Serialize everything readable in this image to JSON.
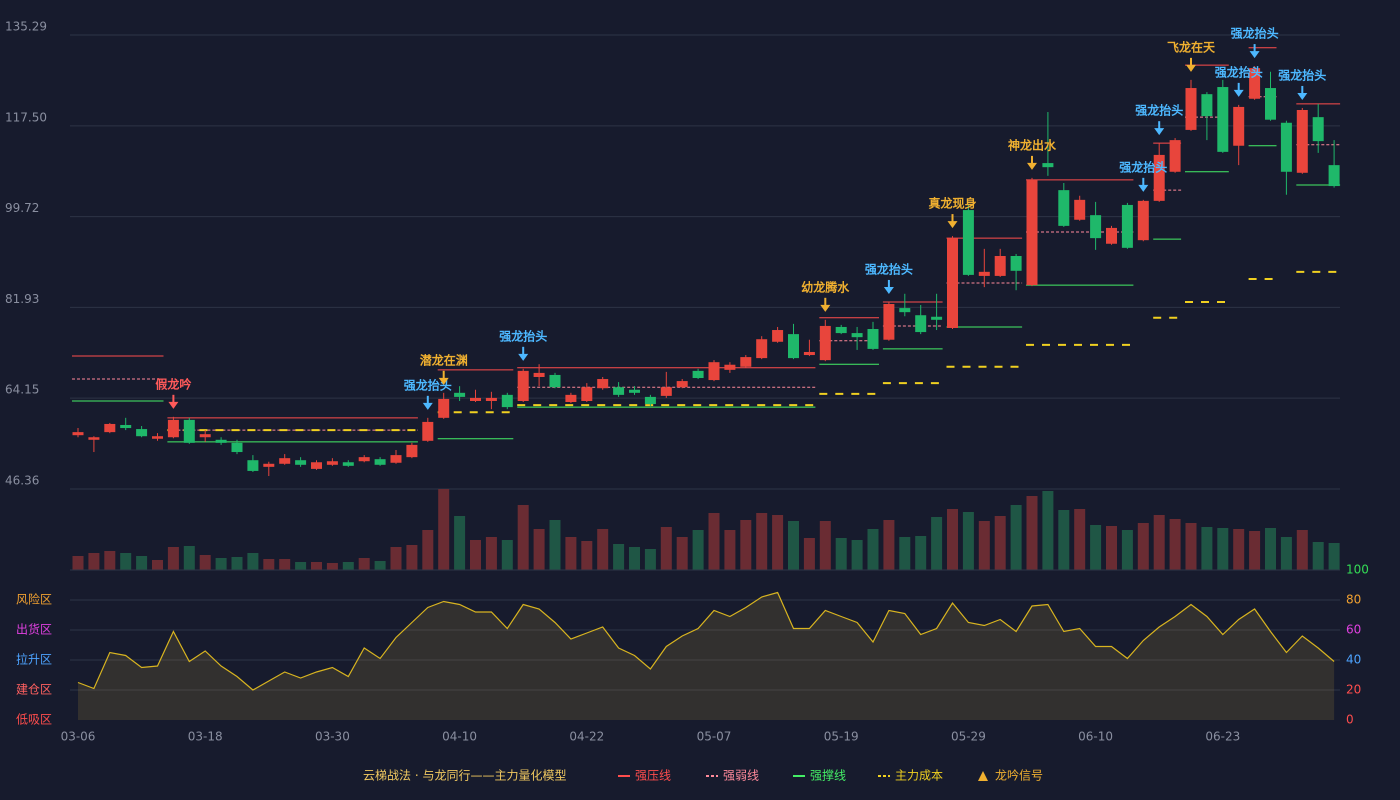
{
  "chart_data": {
    "type": "candlestick",
    "categories": [
      "03-06",
      null,
      null,
      null,
      null,
      null,
      null,
      null,
      "03-18",
      null,
      null,
      null,
      null,
      null,
      null,
      null,
      "03-30",
      null,
      null,
      null,
      null,
      null,
      null,
      null,
      "04-10",
      null,
      null,
      null,
      null,
      null,
      null,
      null,
      "04-22",
      null,
      null,
      null,
      null,
      null,
      null,
      null,
      "05-07",
      null,
      null,
      null,
      null,
      null,
      null,
      null,
      "05-19",
      null,
      null,
      null,
      null,
      null,
      null,
      null,
      "05-29",
      null,
      null,
      null,
      null,
      null,
      null,
      null,
      "06-10",
      null,
      null,
      null,
      null,
      null,
      null,
      null,
      "06-23",
      null,
      null,
      null,
      null,
      null,
      null,
      null
    ],
    "open": [
      56.9,
      56.0,
      57.5,
      58.9,
      58.1,
      56.2,
      56.5,
      59.9,
      56.5,
      56.0,
      55.4,
      52.0,
      50.7,
      51.3,
      52.0,
      50.3,
      51.1,
      51.6,
      51.8,
      52.2,
      51.5,
      52.6,
      55.8,
      60.3,
      65.2,
      63.6,
      63.6,
      64.8,
      63.6,
      68.3,
      68.7,
      63.4,
      63.6,
      66.1,
      66.3,
      65.8,
      64.4,
      64.6,
      66.3,
      69.5,
      67.7,
      69.7,
      70.3,
      72.0,
      75.2,
      76.7,
      72.6,
      71.6,
      78.1,
      76.9,
      77.7,
      75.6,
      81.8,
      80.4,
      80.1,
      77.9,
      101.0,
      88.1,
      88.1,
      92.0,
      86.3,
      110.2,
      104.9,
      99.1,
      100.0,
      94.4,
      102.0,
      95.1,
      102.8,
      108.5,
      116.7,
      123.7,
      125.1,
      113.6,
      122.8,
      124.9,
      118.1,
      108.3,
      119.2,
      109.8
    ],
    "close": [
      57.5,
      56.5,
      59.1,
      58.3,
      56.7,
      56.7,
      59.9,
      55.4,
      57.1,
      55.4,
      53.6,
      49.9,
      51.3,
      52.4,
      51.1,
      51.6,
      51.8,
      50.9,
      52.6,
      51.1,
      53.0,
      55.0,
      59.5,
      64.0,
      64.4,
      64.2,
      64.2,
      62.4,
      69.5,
      69.1,
      66.3,
      64.8,
      66.3,
      67.9,
      64.8,
      65.2,
      63.0,
      66.3,
      67.5,
      68.1,
      71.2,
      70.7,
      72.2,
      75.7,
      77.5,
      72.0,
      73.2,
      78.3,
      76.9,
      76.1,
      73.8,
      82.6,
      81.0,
      77.1,
      79.5,
      95.5,
      88.3,
      88.9,
      92.0,
      89.1,
      106.9,
      109.4,
      97.9,
      103.0,
      95.5,
      97.5,
      93.6,
      102.8,
      111.8,
      114.7,
      124.9,
      119.4,
      112.4,
      121.2,
      128.8,
      118.7,
      108.5,
      120.6,
      114.5,
      105.7
    ],
    "high": [
      58.3,
      56.7,
      59.3,
      60.3,
      58.7,
      57.3,
      60.5,
      60.3,
      57.9,
      56.5,
      56.0,
      53.0,
      51.7,
      53.2,
      52.6,
      52.0,
      52.4,
      52.0,
      53.0,
      52.6,
      54.0,
      55.4,
      60.3,
      65.2,
      66.5,
      65.8,
      65.4,
      65.2,
      69.9,
      70.8,
      69.1,
      65.2,
      67.1,
      68.3,
      67.3,
      66.5,
      64.8,
      69.3,
      67.9,
      69.9,
      71.6,
      71.2,
      72.6,
      76.3,
      78.1,
      78.7,
      75.6,
      79.5,
      78.5,
      78.1,
      79.1,
      83.0,
      84.6,
      82.4,
      84.6,
      95.9,
      102.0,
      93.4,
      93.4,
      92.4,
      107.3,
      120.2,
      106.3,
      103.8,
      102.6,
      97.9,
      102.4,
      103.0,
      114.1,
      115.1,
      126.5,
      124.1,
      126.5,
      121.6,
      129.2,
      128.1,
      118.5,
      121.0,
      121.8,
      114.7
    ],
    "low": [
      56.5,
      53.6,
      57.3,
      57.9,
      56.5,
      55.8,
      56.3,
      55.2,
      55.6,
      55.0,
      53.2,
      49.7,
      48.9,
      51.1,
      50.7,
      50.1,
      50.9,
      50.7,
      51.6,
      50.9,
      51.3,
      52.4,
      55.6,
      60.1,
      63.6,
      63.4,
      62.0,
      62.0,
      63.4,
      66.5,
      66.1,
      63.2,
      63.4,
      65.8,
      64.4,
      64.8,
      62.6,
      64.2,
      66.1,
      67.9,
      67.5,
      69.1,
      70.1,
      71.8,
      75.0,
      71.8,
      72.4,
      71.4,
      76.7,
      73.6,
      73.6,
      75.4,
      80.2,
      76.7,
      77.5,
      77.7,
      88.1,
      85.9,
      87.9,
      85.3,
      86.1,
      107.7,
      97.7,
      98.9,
      93.2,
      94.2,
      93.4,
      94.9,
      102.6,
      108.3,
      116.5,
      114.7,
      112.2,
      109.8,
      122.6,
      118.5,
      104.0,
      108.1,
      112.2,
      105.4
    ],
    "ylim": [
      46.36,
      135.29
    ],
    "yticks": [
      46.36,
      64.15,
      81.93,
      99.72,
      {
        "value": 117.5,
        "label": "117.50"
      },
      135.29
    ],
    "grid": true,
    "volume": [
      14,
      17,
      19,
      17,
      14,
      10,
      23,
      24,
      15,
      12,
      13,
      17,
      11,
      11,
      8,
      8,
      7,
      8,
      12,
      9,
      23,
      25,
      40,
      81,
      54,
      30,
      33,
      30,
      65,
      41,
      50,
      33,
      29,
      41,
      26,
      23,
      21,
      43,
      33,
      40,
      57,
      40,
      50,
      57,
      55,
      49,
      32,
      49,
      32,
      30,
      41,
      50,
      33,
      34,
      53,
      61,
      58,
      49,
      54,
      65,
      74,
      79,
      60,
      61,
      45,
      44,
      40,
      47,
      55,
      51,
      47,
      43,
      42,
      41,
      39,
      42,
      33,
      40,
      28,
      27
    ],
    "oscillator": {
      "values": [
        25,
        21,
        45,
        43,
        35,
        36,
        59,
        39,
        46,
        36,
        29,
        20,
        26,
        32,
        28,
        32,
        35,
        29,
        48,
        41,
        55,
        65,
        75,
        79,
        77,
        72,
        72,
        61,
        77,
        74,
        65,
        54,
        58,
        62,
        48,
        43,
        34,
        49,
        56,
        61,
        73,
        69,
        75,
        82,
        85,
        61,
        61,
        73,
        69,
        65,
        52,
        73,
        71,
        57,
        61,
        78,
        65,
        63,
        67,
        59,
        76,
        77,
        59,
        61,
        49,
        49,
        41,
        53,
        62,
        69,
        77,
        69,
        57,
        67,
        74,
        59,
        45,
        56,
        48,
        39
      ],
      "ylim": [
        0,
        100
      ],
      "yticks": [
        0,
        20,
        40,
        60,
        80,
        100
      ],
      "tick_colors": [
        "#ff4d4d",
        "#ff4d4d",
        "#4da3ff",
        "#e040e0",
        "#f0a030",
        "#33dd55"
      ],
      "zones": [
        {
          "value": 0,
          "label": "低吸区"
        },
        {
          "value": 20,
          "label": "建仓区"
        },
        {
          "value": 40,
          "label": "拉升区"
        },
        {
          "value": 60,
          "label": "出货区"
        },
        {
          "value": 80,
          "label": "风险区"
        }
      ],
      "zone_colors": [
        "#ff4d4d",
        "#ff6060",
        "#4da3ff",
        "#e040e0",
        "#f0a030"
      ]
    },
    "levels": [
      {
        "start": 0,
        "end": 5,
        "pressure": 72.4,
        "mid": 67.9,
        "support": 63.6,
        "cost": null
      },
      {
        "start": 6,
        "end": 21,
        "pressure": 60.3,
        "mid": 57.9,
        "support": 55.6,
        "cost": 57.9
      },
      {
        "start": 23,
        "end": 27,
        "pressure": 69.7,
        "mid": null,
        "support": 56.2,
        "cost": 61.4
      },
      {
        "start": 28,
        "end": 46,
        "pressure": 70.1,
        "mid": 66.3,
        "support": 62.4,
        "cost": 62.8
      },
      {
        "start": 47,
        "end": 50,
        "pressure": 79.9,
        "mid": 75.4,
        "support": 70.8,
        "cost": 65.0
      },
      {
        "start": 51,
        "end": 54,
        "pressure": 83.0,
        "mid": 78.3,
        "support": 73.8,
        "cost": 67.1
      },
      {
        "start": 55,
        "end": 59,
        "pressure": 95.5,
        "mid": 86.7,
        "support": 78.1,
        "cost": 70.3
      },
      {
        "start": 60,
        "end": 66,
        "pressure": 106.9,
        "mid": 96.7,
        "support": 86.3,
        "cost": 74.6
      },
      {
        "start": 68,
        "end": 69,
        "pressure": 114.1,
        "mid": 104.9,
        "support": 95.3,
        "cost": 79.9
      },
      {
        "start": 70,
        "end": 72,
        "pressure": 129.4,
        "mid": 119.2,
        "support": 108.5,
        "cost": 83.0
      },
      {
        "start": 74,
        "end": 75,
        "pressure": 132.8,
        "mid": 123.2,
        "support": 113.6,
        "cost": 87.5
      },
      {
        "start": 77,
        "end": 79,
        "pressure": 121.8,
        "mid": 113.8,
        "support": 105.9,
        "cost": 88.9
      }
    ],
    "annotations": [
      {
        "index": 6,
        "text": "假龙吟",
        "color": "#ff5a5a"
      },
      {
        "index": 22,
        "text": "强龙抬头",
        "color": "#4db8ff"
      },
      {
        "index": 23,
        "text": "潜龙在渊",
        "color": "#f0b030"
      },
      {
        "index": 28,
        "text": "强龙抬头",
        "color": "#4db8ff"
      },
      {
        "index": 47,
        "text": "幼龙腾水",
        "color": "#f0b030"
      },
      {
        "index": 51,
        "text": "强龙抬头",
        "color": "#4db8ff"
      },
      {
        "index": 55,
        "text": "真龙现身",
        "color": "#f0b030"
      },
      {
        "index": 60,
        "text": "神龙出水",
        "color": "#f0b030"
      },
      {
        "index": 67,
        "text": "强龙抬头",
        "color": "#4db8ff"
      },
      {
        "index": 68,
        "text": "强龙抬头",
        "color": "#4db8ff"
      },
      {
        "index": 70,
        "text": "飞龙在天",
        "color": "#f0b030"
      },
      {
        "index": 73,
        "text": "强龙抬头",
        "color": "#4db8ff"
      },
      {
        "index": 74,
        "text": "强龙抬头",
        "color": "#4db8ff"
      },
      {
        "index": 77,
        "text": "强龙抬头",
        "color": "#4db8ff"
      }
    ],
    "legend": {
      "title": "云梯战法 · 与龙同行——主力量化模型",
      "items": [
        {
          "name": "强压线",
          "key": "pressure",
          "color": "#ff4d4d",
          "style": "solid"
        },
        {
          "name": "强弱线",
          "key": "mid",
          "color": "#ff8a9a",
          "style": "dashed"
        },
        {
          "name": "强撑线",
          "key": "support",
          "color": "#44ee66",
          "style": "solid"
        },
        {
          "name": "主力成本",
          "key": "cost",
          "color": "#f0d020",
          "style": "dashed"
        },
        {
          "name": "龙吟信号",
          "color": "#f0b030",
          "style": "triangle"
        }
      ]
    }
  }
}
